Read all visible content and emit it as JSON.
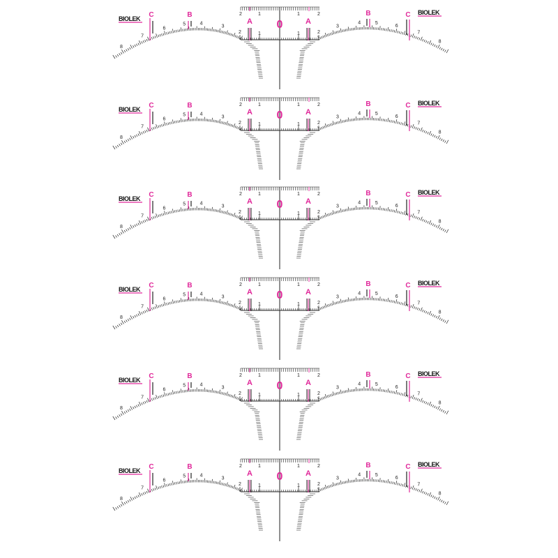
{
  "sheet": {
    "ruler_count": 6,
    "colors": {
      "accent": "#e0289a",
      "ink": "#222222",
      "background": "#ffffff"
    },
    "ruler": {
      "logo": "BIOLEK",
      "center_mark": "0",
      "inner_marks": [
        "A",
        "A"
      ],
      "outer_marks_left": [
        "C",
        "B"
      ],
      "outer_marks_right": [
        "B",
        "C"
      ],
      "top_scale_labels": [
        "2",
        "1",
        "1",
        "2"
      ],
      "base_scale_labels": [
        "2",
        "1",
        "1",
        "2"
      ],
      "left_arc_labels": [
        "8",
        "7",
        "6",
        "5",
        "4",
        "3"
      ],
      "right_arc_labels": [
        "3",
        "4",
        "5",
        "6",
        "7",
        "8"
      ]
    }
  }
}
